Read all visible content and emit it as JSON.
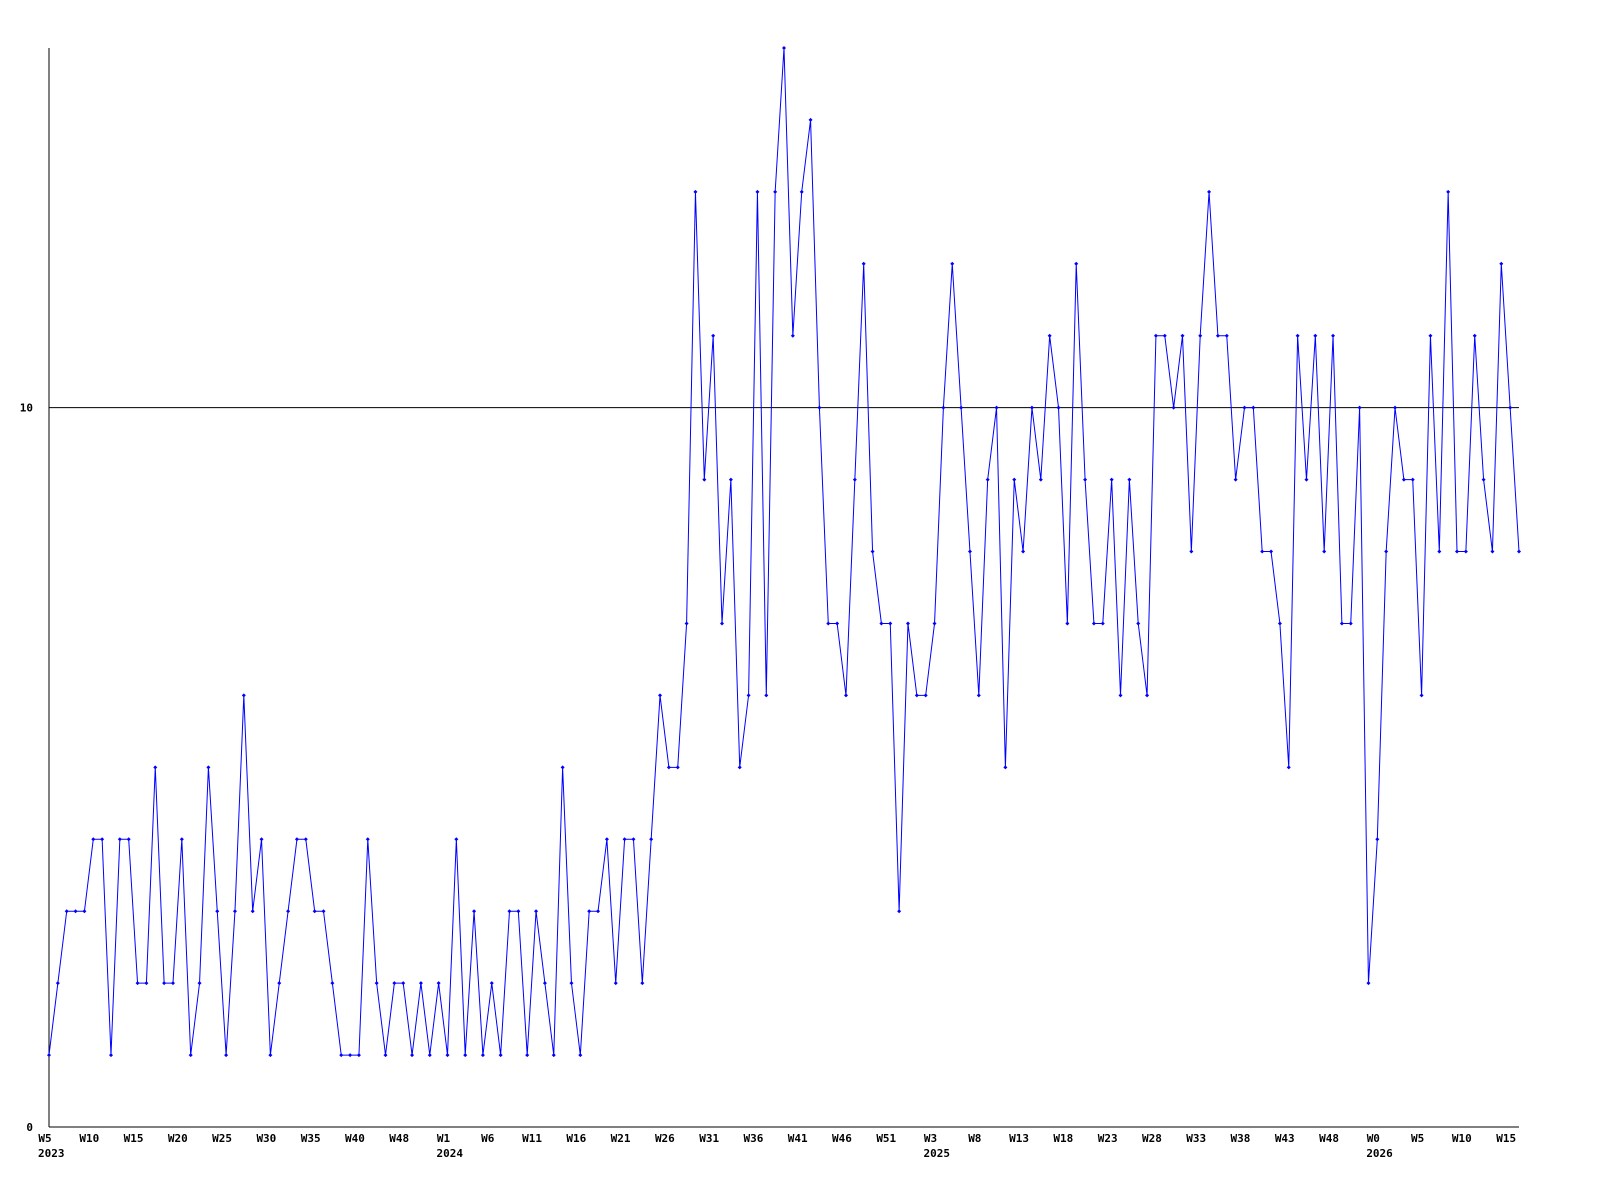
{
  "chart_data": {
    "type": "line",
    "color": "#0000ff",
    "grid": true,
    "ylim": [
      0,
      15
    ],
    "yticks": [
      0,
      10
    ],
    "categories": [
      "W5",
      null,
      null,
      null,
      null,
      "W10",
      null,
      null,
      null,
      null,
      "W15",
      null,
      null,
      null,
      null,
      "W20",
      null,
      null,
      null,
      null,
      "W25",
      null,
      null,
      null,
      null,
      "W30",
      null,
      null,
      null,
      null,
      "W35",
      null,
      null,
      null,
      null,
      "W40",
      null,
      null,
      null,
      null,
      "W48",
      null,
      null,
      null,
      null,
      "W1",
      null,
      null,
      null,
      null,
      "W6",
      null,
      null,
      null,
      null,
      "W11",
      null,
      null,
      null,
      null,
      "W16",
      null,
      null,
      null,
      null,
      "W21",
      null,
      null,
      null,
      null,
      "W26",
      null,
      null,
      null,
      null,
      "W31",
      null,
      null,
      null,
      null,
      "W36",
      null,
      null,
      null,
      null,
      "W41",
      null,
      null,
      null,
      null,
      "W46",
      null,
      null,
      null,
      null,
      "W51",
      null,
      null,
      null,
      null,
      "W3",
      null,
      null,
      null,
      null,
      "W8",
      null,
      null,
      null,
      null,
      "W13",
      null,
      null,
      null,
      null,
      "W18",
      null,
      null,
      null,
      null,
      "W23",
      null,
      null,
      null,
      null,
      "W28",
      null,
      null,
      null,
      null,
      "W33",
      null,
      null,
      null,
      null,
      "W38",
      null,
      null,
      null,
      null,
      "W43",
      null,
      null,
      null,
      null,
      "W48",
      null,
      null,
      null,
      null,
      "W0",
      null,
      null,
      null,
      null,
      "W5",
      null,
      null,
      null,
      null,
      "W10",
      null,
      null,
      null,
      null,
      "W15",
      null
    ],
    "x_year_labels": [
      "2023",
      null,
      null,
      null,
      null,
      null,
      null,
      null,
      null,
      null,
      null,
      null,
      null,
      null,
      null,
      null,
      null,
      null,
      null,
      null,
      null,
      null,
      null,
      null,
      null,
      null,
      null,
      null,
      null,
      null,
      null,
      null,
      null,
      null,
      null,
      null,
      null,
      null,
      null,
      null,
      null,
      null,
      null,
      null,
      null,
      "2024",
      null,
      null,
      null,
      null,
      null,
      null,
      null,
      null,
      null,
      null,
      null,
      null,
      null,
      null,
      null,
      null,
      null,
      null,
      null,
      null,
      null,
      null,
      null,
      null,
      null,
      null,
      null,
      null,
      null,
      null,
      null,
      null,
      null,
      null,
      null,
      null,
      null,
      null,
      null,
      null,
      null,
      null,
      null,
      null,
      null,
      null,
      null,
      null,
      null,
      null,
      null,
      null,
      null,
      null,
      "2025",
      null,
      null,
      null,
      null,
      null,
      null,
      null,
      null,
      null,
      null,
      null,
      null,
      null,
      null,
      null,
      null,
      null,
      null,
      null,
      null,
      null,
      null,
      null,
      null,
      null,
      null,
      null,
      null,
      null,
      null,
      null,
      null,
      null,
      null,
      null,
      null,
      null,
      null,
      null,
      null,
      null,
      null,
      null,
      null,
      null,
      null,
      null,
      null,
      null,
      "2026",
      null,
      null,
      null,
      null,
      null,
      null,
      null,
      null,
      null,
      null,
      null,
      null,
      null,
      null,
      null,
      null
    ],
    "values": [
      1,
      2,
      3,
      3,
      3,
      4,
      4,
      1,
      4,
      4,
      2,
      2,
      5,
      2,
      2,
      4,
      1,
      2,
      5,
      3,
      1,
      3,
      6,
      3,
      4,
      1,
      2,
      3,
      4,
      4,
      3,
      3,
      2,
      1,
      1,
      1,
      4,
      2,
      1,
      2,
      2,
      1,
      2,
      1,
      2,
      1,
      4,
      1,
      3,
      1,
      2,
      1,
      3,
      3,
      1,
      3,
      2,
      1,
      5,
      2,
      1,
      3,
      3,
      4,
      2,
      4,
      4,
      2,
      4,
      6,
      5,
      5,
      7,
      13,
      9,
      11,
      7,
      9,
      5,
      6,
      13,
      6,
      13,
      15,
      11,
      13,
      14,
      10,
      7,
      7,
      6,
      9,
      12,
      8,
      7,
      7,
      3,
      7,
      6,
      6,
      7,
      10,
      12,
      10,
      8,
      6,
      9,
      10,
      5,
      9,
      8,
      10,
      9,
      11,
      10,
      7,
      12,
      9,
      7,
      7,
      9,
      6,
      9,
      7,
      6,
      11,
      11,
      10,
      11,
      8,
      11,
      13,
      11,
      11,
      9,
      10,
      10,
      8,
      8,
      7,
      5,
      11,
      9,
      11,
      8,
      11,
      7,
      7,
      10,
      2,
      4,
      8,
      10,
      9,
      9,
      6,
      11,
      8,
      13,
      8,
      8,
      11,
      9,
      8,
      12,
      10,
      8
    ]
  }
}
